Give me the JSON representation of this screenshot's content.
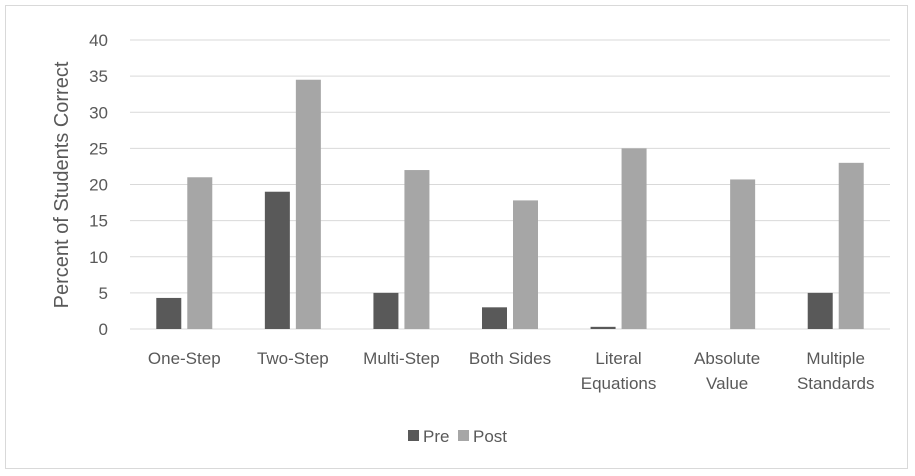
{
  "chart_data": {
    "type": "bar",
    "ylabel": "Percent of Students Correct",
    "xlabel": "",
    "ylim": [
      0,
      40
    ],
    "yticks": [
      "0",
      "5",
      "10",
      "15",
      "20",
      "25",
      "30",
      "35",
      "40"
    ],
    "categories": [
      [
        "One-Step"
      ],
      [
        "Two-Step"
      ],
      [
        "Multi-Step"
      ],
      [
        "Both Sides"
      ],
      [
        "Literal",
        "Equations"
      ],
      [
        "Absolute",
        "Value"
      ],
      [
        "Multiple",
        "Standards"
      ]
    ],
    "series": [
      {
        "name": "Pre",
        "color": "#595959",
        "values": [
          4.3,
          19,
          5,
          3,
          0.3,
          0,
          5
        ]
      },
      {
        "name": "Post",
        "color": "#a6a6a6",
        "values": [
          21,
          34.5,
          22,
          17.8,
          25,
          20.7,
          23
        ]
      }
    ],
    "grid": true,
    "legend_position": "bottom"
  }
}
